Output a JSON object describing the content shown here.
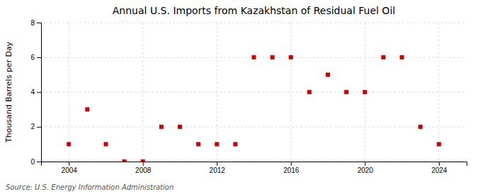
{
  "chart_data": {
    "type": "scatter",
    "title": "Annual U.S. Imports from Kazakhstan of Residual Fuel Oil",
    "y_label": "Thousand Barrels per Day",
    "annotation": "Source: U.S. Energy Information Administration",
    "x": [
      2004,
      2005,
      2006,
      2007,
      2008,
      2009,
      2010,
      2011,
      2012,
      2013,
      2014,
      2015,
      2016,
      2017,
      2018,
      2019,
      2020,
      2021,
      2022,
      2023,
      2024
    ],
    "values": [
      1,
      3,
      1,
      0,
      0,
      2,
      2,
      1,
      1,
      1,
      6,
      6,
      6,
      4,
      5,
      4,
      4,
      6,
      6,
      2,
      1
    ],
    "xlim": [
      2002.5,
      2025.5
    ],
    "xticks": [
      2004,
      2008,
      2012,
      2016,
      2020,
      2024
    ],
    "ylim": [
      0,
      8
    ],
    "yticks": [
      0,
      2,
      4,
      6,
      8
    ],
    "grid": true,
    "color": "#cc0000",
    "marker": "square"
  }
}
